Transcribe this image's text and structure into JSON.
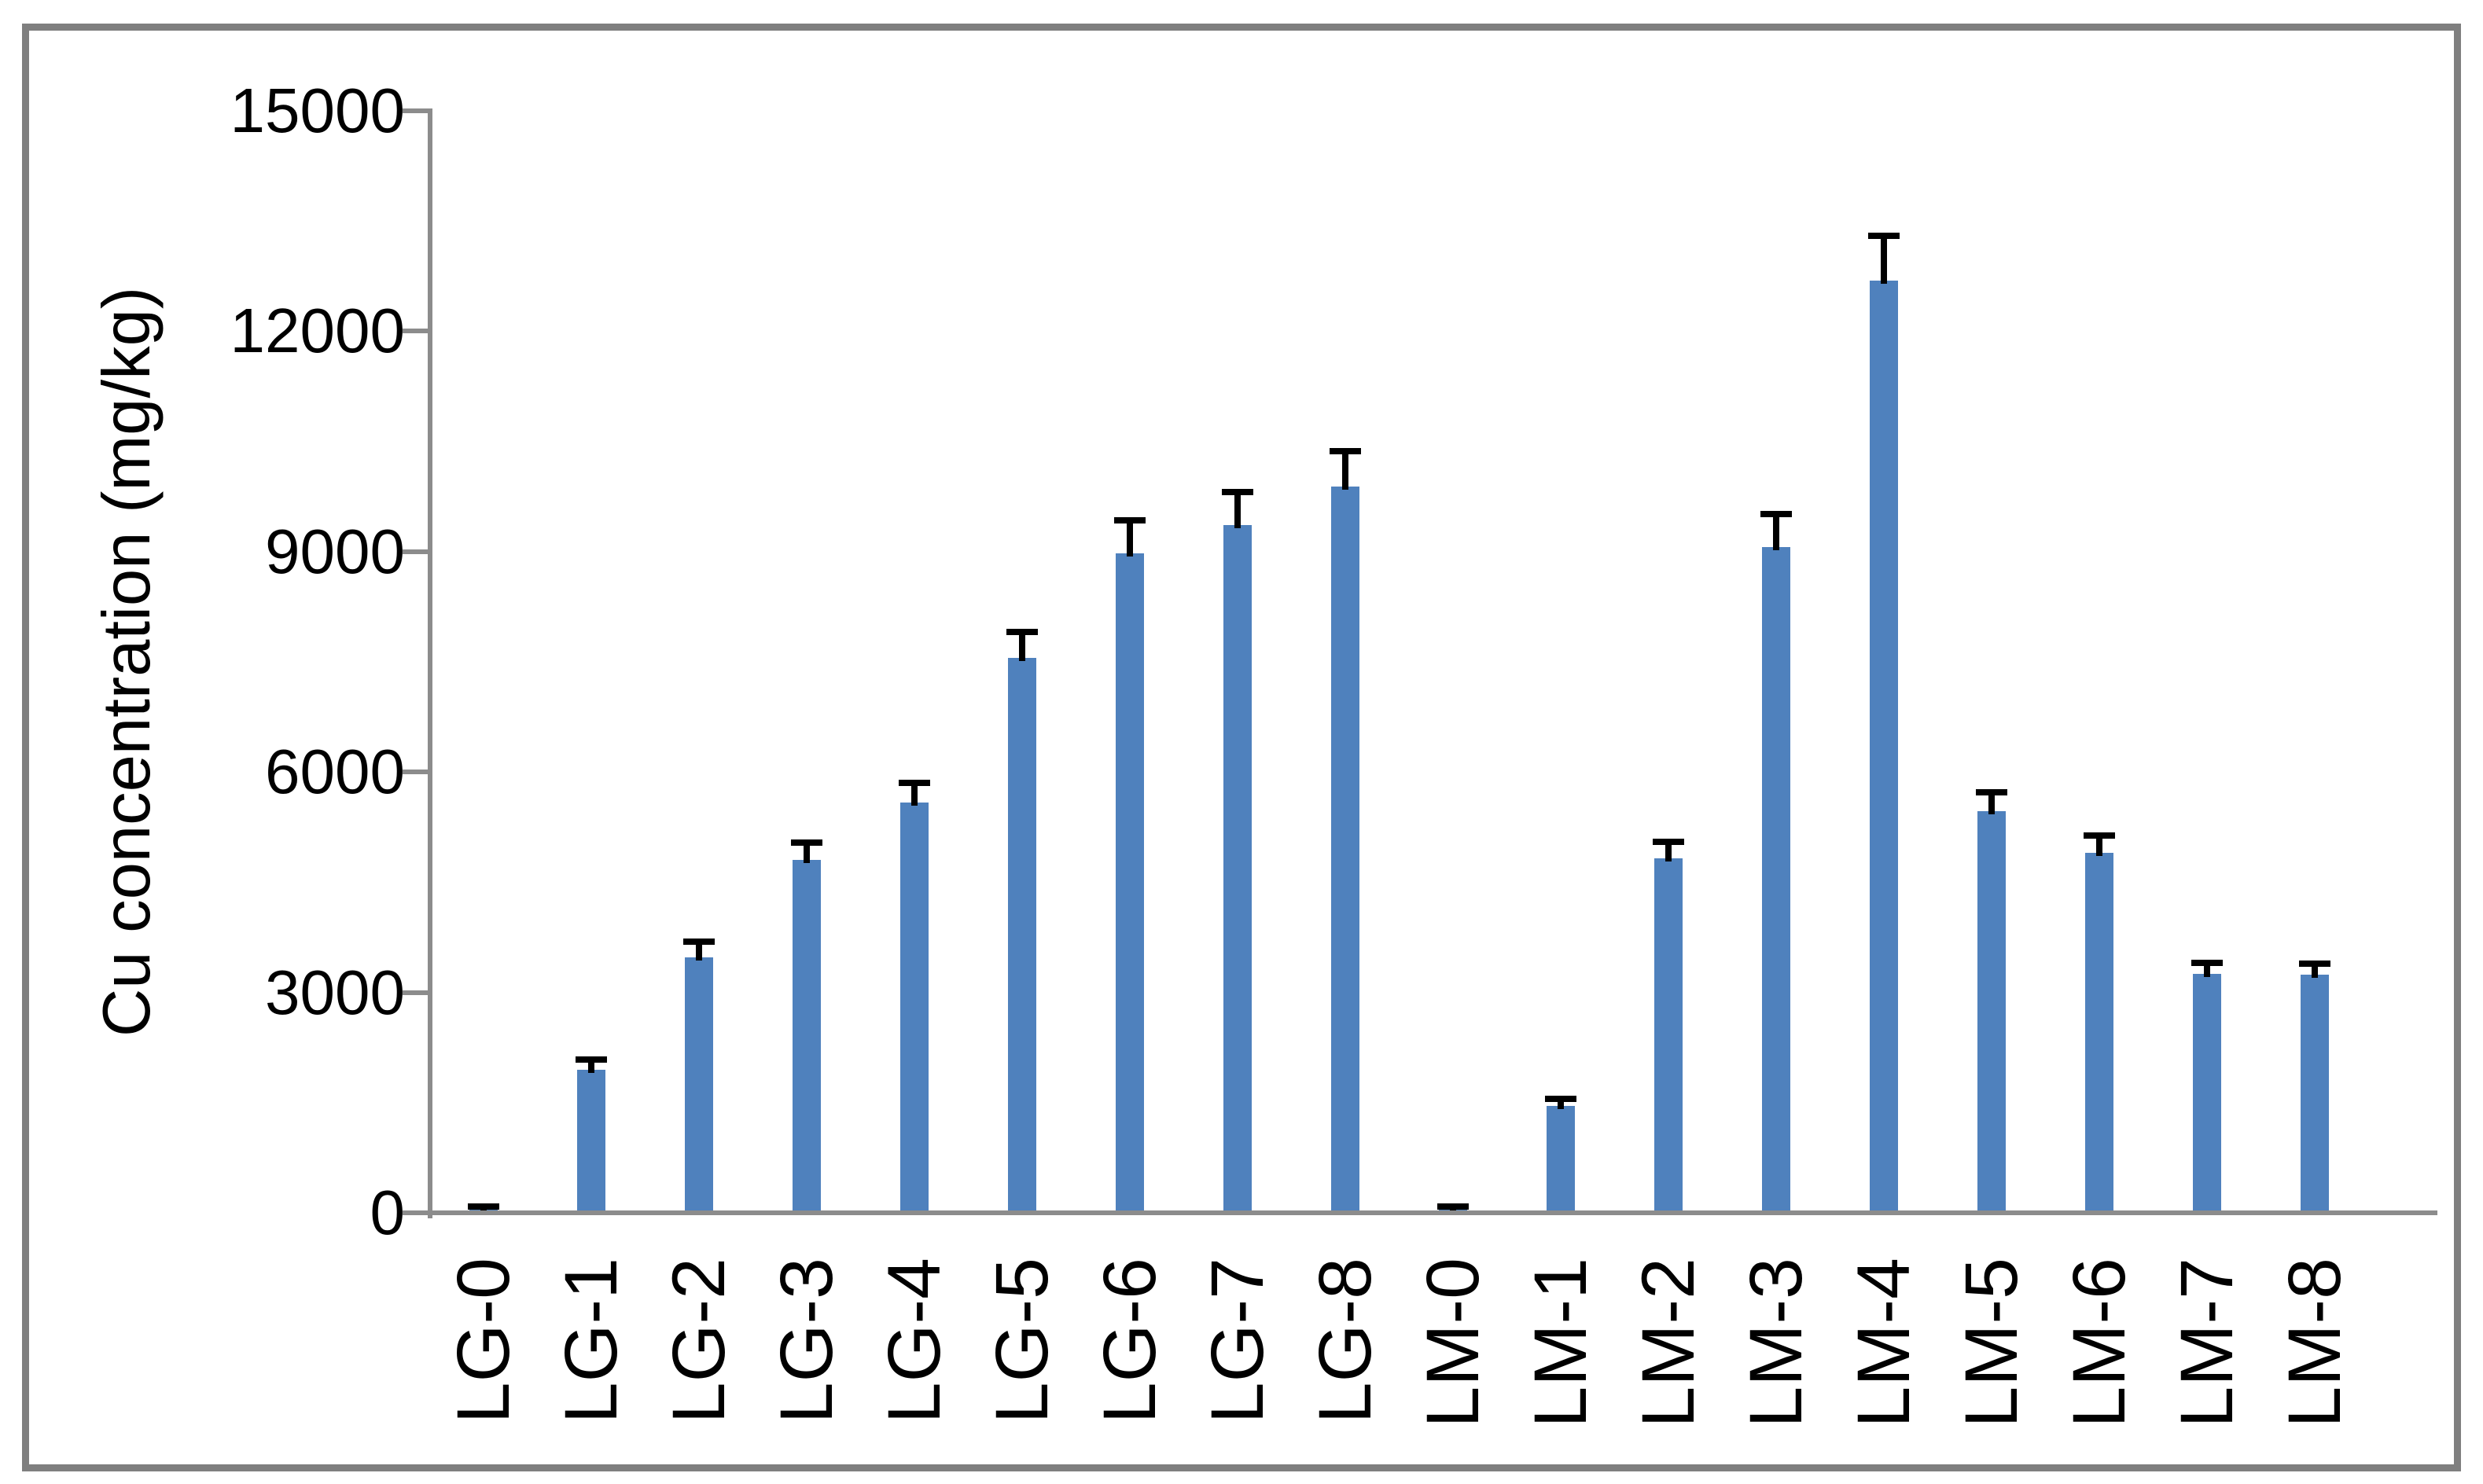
{
  "figure": {
    "background": "#ffffff",
    "border_color": "#7f7f7f"
  },
  "chart_data": {
    "type": "bar",
    "title": "",
    "xlabel": "",
    "ylabel": "Cu concentration (mg/kg)",
    "categories": [
      "LG-0",
      "LG-1",
      "LG-2",
      "LG-3",
      "LG-4",
      "LG-5",
      "LG-6",
      "LG-7",
      "LG-8",
      "LM-0",
      "LM-1",
      "LM-2",
      "LM-3",
      "LM-4",
      "LM-5",
      "LM-6",
      "LM-7",
      "LM-8"
    ],
    "values": [
      40,
      1950,
      3480,
      4800,
      5590,
      7550,
      8980,
      9360,
      9890,
      40,
      1460,
      4830,
      9060,
      12690,
      5470,
      4900,
      3250,
      3240
    ],
    "errors_plus": [
      30,
      130,
      200,
      230,
      250,
      350,
      430,
      440,
      470,
      30,
      80,
      210,
      440,
      600,
      245,
      220,
      140,
      140
    ],
    "ylim": [
      0,
      15000
    ],
    "yticks": [
      0,
      3000,
      6000,
      9000,
      12000,
      15000
    ],
    "ytick_labels": [
      "0",
      "3000",
      "6000",
      "9000",
      "12000",
      "15000"
    ],
    "grid": "off",
    "legend": "none",
    "bar_color": "#4f81bd",
    "error_bar_color": "#000000",
    "axis_color": "#8c8c8c",
    "text_color": "#000000"
  }
}
